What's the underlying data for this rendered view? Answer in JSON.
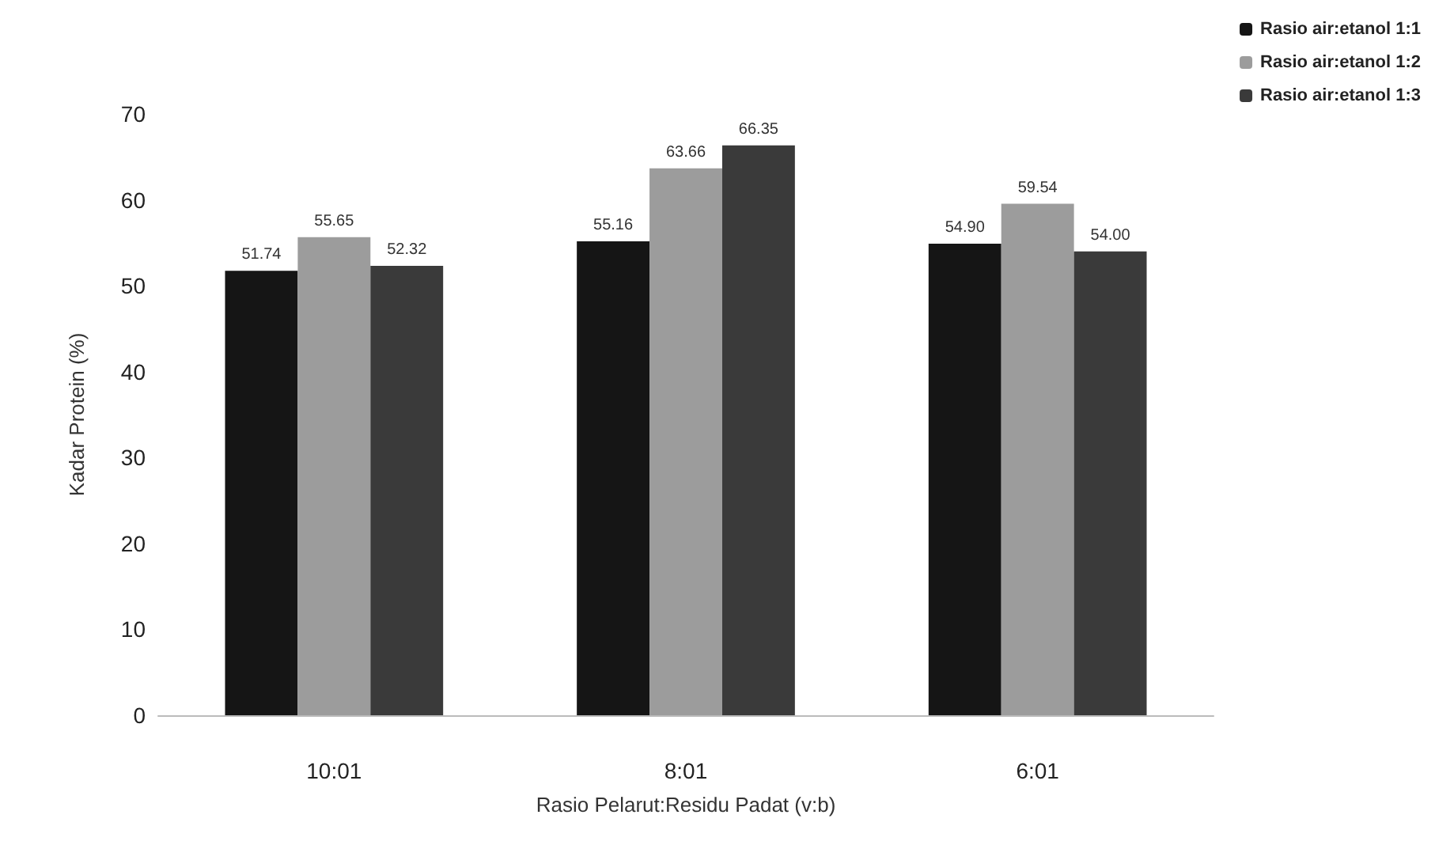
{
  "chart_data": {
    "type": "bar",
    "xlabel": "Rasio Pelarut:Residu Padat (v:b)",
    "ylabel": "Kadar Protein (%)",
    "categories": [
      "10:01",
      "8:01",
      "6:01"
    ],
    "series": [
      {
        "name": "Rasio air:etanol 1:1",
        "color": "#151515",
        "values": [
          51.74,
          55.16,
          54.9
        ],
        "value_labels": [
          "51.74",
          "55.16",
          "54.90"
        ]
      },
      {
        "name": "Rasio air:etanol 1:2",
        "color": "#9c9c9c",
        "values": [
          55.65,
          63.66,
          59.54
        ],
        "value_labels": [
          "55.65",
          "63.66",
          "59.54"
        ]
      },
      {
        "name": "Rasio air:etanol 1:3",
        "color": "#3a3a3a",
        "values": [
          52.32,
          66.35,
          54.0
        ],
        "value_labels": [
          "52.32",
          "66.35",
          "54.00"
        ]
      }
    ],
    "ylim": [
      0,
      70
    ],
    "yticks": [
      0,
      10,
      20,
      30,
      40,
      50,
      60,
      70
    ],
    "grid": false,
    "legend": "top right"
  }
}
